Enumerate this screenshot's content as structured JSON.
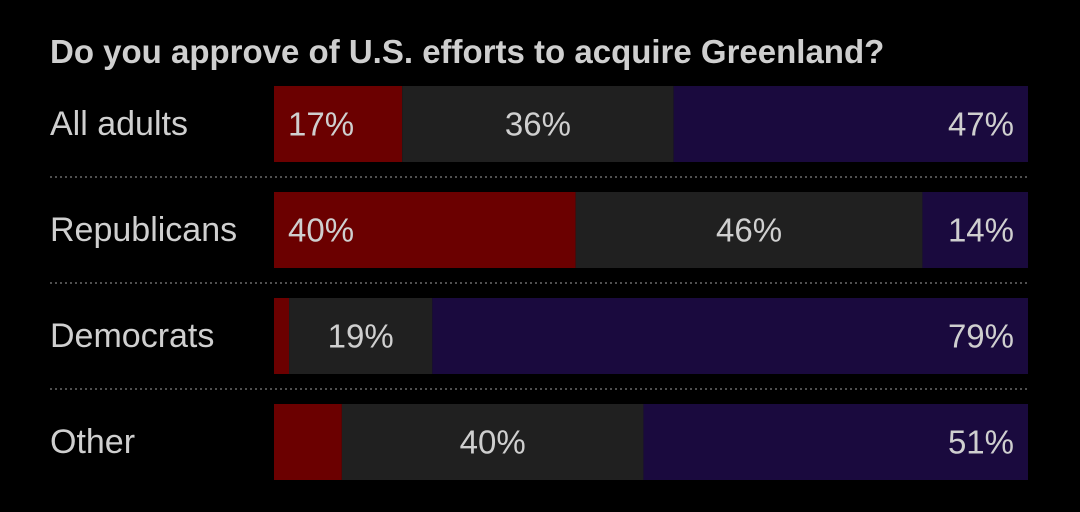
{
  "chart_data": {
    "type": "bar",
    "orientation": "horizontal",
    "stacked": true,
    "title": "Do you approve of U.S. efforts to acquire Greenland?",
    "categories": [
      "All adults",
      "Republicans",
      "Democrats",
      "Other"
    ],
    "series": [
      {
        "color": "#6b0000",
        "values": [
          17,
          40,
          2,
          9
        ],
        "labels": [
          "17%",
          "40%",
          "",
          ""
        ]
      },
      {
        "color": "#202020",
        "values": [
          36,
          46,
          19,
          40
        ],
        "labels": [
          "36%",
          "46%",
          "19%",
          "40%"
        ]
      },
      {
        "color": "#1a0a3e",
        "values": [
          47,
          14,
          79,
          51
        ],
        "labels": [
          "47%",
          "14%",
          "79%",
          "51%"
        ]
      }
    ],
    "xlim": [
      0,
      100
    ],
    "grid": false,
    "legend": "none",
    "colors": {
      "background": "#000000",
      "text": "#cfcfcf",
      "separator": "#6a6a6a"
    }
  }
}
